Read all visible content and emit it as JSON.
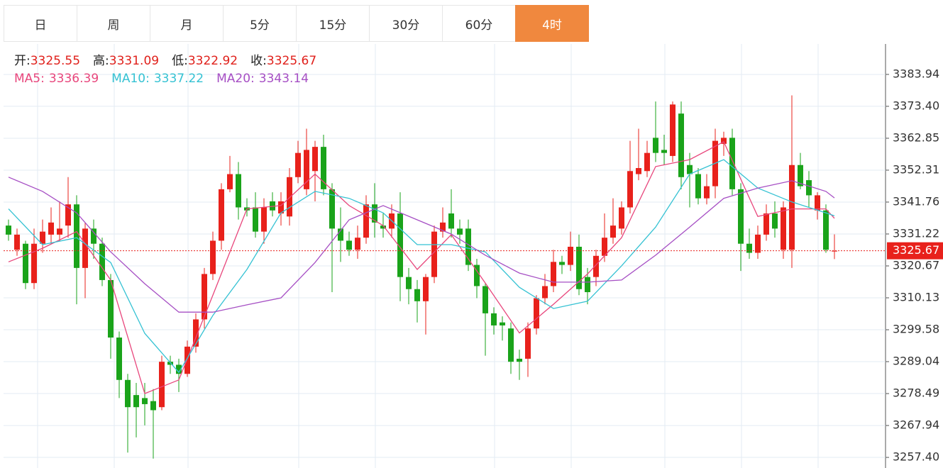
{
  "tabs": [
    "日",
    "周",
    "月",
    "5分",
    "15分",
    "30分",
    "60分",
    "4时"
  ],
  "active_tab": 7,
  "chart_data": {
    "type": "candlestick",
    "ohlc_labels": [
      "开:",
      "高:",
      "低:",
      "收:"
    ],
    "up_color": "#e8211b",
    "down_color": "#1aa31a",
    "ylim": [
      3253.9,
      3394.0
    ],
    "yticks": [
      3383.94,
      {
        "value": 3373.4,
        "label": "3373.40"
      },
      3362.85,
      3352.31,
      3341.76,
      3331.22,
      3320.67,
      3310.13,
      3299.58,
      3289.04,
      3278.49,
      3267.94,
      {
        "value": 3257.4,
        "label": "3257.40"
      }
    ],
    "grid": true,
    "ohlc": [
      [
        3334,
        3336,
        3329,
        3331
      ],
      [
        3326,
        3333,
        3324,
        3331
      ],
      [
        3328,
        3329,
        3313,
        3315
      ],
      [
        3315,
        3333,
        3313,
        3328
      ],
      [
        3328,
        3336,
        3325,
        3332
      ],
      [
        3331,
        3340,
        3328,
        3335
      ],
      [
        3331,
        3342,
        3329,
        3333
      ],
      [
        3334,
        3350,
        3330,
        3341
      ],
      [
        3341,
        3344,
        3308,
        3320
      ],
      [
        3320,
        3335,
        3310,
        3333
      ],
      [
        3333,
        3336,
        3323,
        3328
      ],
      [
        3328,
        3330,
        3314,
        3316
      ],
      [
        3316,
        3318,
        3290,
        3297
      ],
      [
        3297,
        3299,
        3277,
        3283
      ],
      [
        3283,
        3285,
        3259,
        3274
      ],
      [
        3278,
        3282,
        3264,
        3274
      ],
      [
        3277,
        3282,
        3268,
        3275
      ],
      [
        3276,
        3280,
        3257,
        3273
      ],
      [
        3274,
        3291,
        3273,
        3289
      ],
      [
        3289,
        3291,
        3285,
        3288
      ],
      [
        3288,
        3290,
        3279,
        3285
      ],
      [
        3285,
        3296,
        3284,
        3294
      ],
      [
        3294,
        3305,
        3292,
        3303
      ],
      [
        3303,
        3320,
        3300,
        3318
      ],
      [
        3318,
        3332,
        3316,
        3329
      ],
      [
        3329,
        3348,
        3326,
        3346
      ],
      [
        3346,
        3357,
        3345,
        3351
      ],
      [
        3351,
        3355,
        3336,
        3340
      ],
      [
        3340,
        3343,
        3337,
        3339
      ],
      [
        3340,
        3345,
        3330,
        3332
      ],
      [
        3332,
        3343,
        3328,
        3340
      ],
      [
        3342,
        3345,
        3337,
        3339
      ],
      [
        3338,
        3345,
        3334,
        3342
      ],
      [
        3337,
        3353,
        3334,
        3350
      ],
      [
        3350,
        3362,
        3348,
        3358
      ],
      [
        3346,
        3366,
        3344,
        3359
      ],
      [
        3352,
        3362,
        3342,
        3360
      ],
      [
        3360,
        3364,
        3344,
        3346
      ],
      [
        3346,
        3348,
        3312,
        3333
      ],
      [
        3333,
        3340,
        3322,
        3329
      ],
      [
        3329,
        3332,
        3324,
        3326
      ],
      [
        3326,
        3334,
        3323,
        3330
      ],
      [
        3330,
        3344,
        3328,
        3341
      ],
      [
        3341,
        3348,
        3330,
        3335
      ],
      [
        3334,
        3338,
        3330,
        3333
      ],
      [
        3333,
        3341,
        3330,
        3338
      ],
      [
        3338,
        3345,
        3309,
        3317
      ],
      [
        3317,
        3320,
        3308,
        3313
      ],
      [
        3313,
        3316,
        3302,
        3309
      ],
      [
        3309,
        3318,
        3298,
        3317
      ],
      [
        3317,
        3334,
        3315,
        3332
      ],
      [
        3332,
        3340,
        3330,
        3335
      ],
      [
        3338,
        3346,
        3330,
        3333
      ],
      [
        3333,
        3336,
        3328,
        3331
      ],
      [
        3333,
        3336,
        3319,
        3321
      ],
      [
        3321,
        3323,
        3310,
        3314
      ],
      [
        3314,
        3315,
        3291,
        3305
      ],
      [
        3305,
        3307,
        3298,
        3301
      ],
      [
        3302,
        3304,
        3296,
        3301
      ],
      [
        3300,
        3302,
        3285,
        3289
      ],
      [
        3290,
        3293,
        3283,
        3289
      ],
      [
        3290,
        3302,
        3284,
        3300
      ],
      [
        3300,
        3311,
        3298,
        3310
      ],
      [
        3310,
        3318,
        3308,
        3314
      ],
      [
        3314,
        3326,
        3312,
        3322
      ],
      [
        3322,
        3324,
        3318,
        3321
      ],
      [
        3321,
        3332,
        3319,
        3327
      ],
      [
        3327,
        3331,
        3311,
        3313
      ],
      [
        3317,
        3320,
        3308,
        3312
      ],
      [
        3317,
        3326,
        3314,
        3324
      ],
      [
        3324,
        3338,
        3322,
        3330
      ],
      [
        3330,
        3343,
        3328,
        3334
      ],
      [
        3333,
        3342,
        3331,
        3340
      ],
      [
        3340,
        3362,
        3338,
        3352
      ],
      [
        3351,
        3366,
        3349,
        3353
      ],
      [
        3352,
        3362,
        3350,
        3358
      ],
      [
        3363,
        3375,
        3355,
        3358
      ],
      [
        3359,
        3364,
        3354,
        3358
      ],
      [
        3357,
        3375,
        3355,
        3374
      ],
      [
        3371,
        3375,
        3346,
        3350
      ],
      [
        3354,
        3358,
        3340,
        3351
      ],
      [
        3351,
        3353,
        3341,
        3343
      ],
      [
        3343,
        3351,
        3341,
        3347
      ],
      [
        3347,
        3366,
        3343,
        3362
      ],
      [
        3361,
        3365,
        3357,
        3363
      ],
      [
        3363,
        3366,
        3344,
        3346
      ],
      [
        3346,
        3348,
        3319,
        3328
      ],
      [
        3328,
        3333,
        3323,
        3325
      ],
      [
        3325,
        3334,
        3323,
        3331
      ],
      [
        3331,
        3341,
        3329,
        3338
      ],
      [
        3338,
        3342,
        3330,
        3333
      ],
      [
        3326,
        3342,
        3323,
        3340
      ],
      [
        3326,
        3377,
        3320,
        3354
      ],
      [
        3354,
        3358,
        3346,
        3347
      ],
      [
        3349,
        3352,
        3340,
        3344
      ],
      [
        3339,
        3345,
        3336,
        3344
      ],
      [
        3339,
        3341,
        3325,
        3326
      ],
      [
        3325.55,
        3331.09,
        3322.92,
        3325.67
      ]
    ],
    "series": [
      {
        "name": "MA5:",
        "color": "#e8467c",
        "x": [
          0,
          4,
          8,
          12,
          16,
          20,
          24,
          28,
          32,
          36,
          40,
          44,
          48,
          52,
          56,
          60,
          64,
          68,
          72,
          76,
          80,
          84,
          88,
          92,
          96,
          97
        ],
        "values": [
          3322,
          3326.5,
          3332,
          3316,
          3278.5,
          3283,
          3311,
          3339.5,
          3340.6,
          3351,
          3340.6,
          3334,
          3319.5,
          3331,
          3315,
          3298.5,
          3308,
          3318,
          3330,
          3353.5,
          3355.8,
          3361.7,
          3337,
          3339.5,
          3339.5,
          3336.39
        ]
      },
      {
        "name": "MA10:",
        "color": "#35c2d3",
        "x": [
          0,
          4,
          8,
          12,
          16,
          20,
          24,
          28,
          32,
          36,
          40,
          44,
          48,
          52,
          56,
          60,
          64,
          68,
          72,
          76,
          80,
          84,
          88,
          92,
          96,
          97
        ],
        "values": [
          3339.5,
          3327.7,
          3330,
          3321.8,
          3298.4,
          3285.5,
          3304.3,
          3319.5,
          3338.2,
          3345.3,
          3343,
          3338.2,
          3327.7,
          3327.7,
          3325.3,
          3313.6,
          3306.6,
          3309,
          3320.7,
          3333.5,
          3351,
          3355.8,
          3346.4,
          3341.8,
          3338.2,
          3337.22
        ]
      },
      {
        "name": "MA20:",
        "color": "#a64fc4",
        "x": [
          0,
          4,
          8,
          12,
          16,
          20,
          24,
          28,
          32,
          36,
          40,
          44,
          48,
          52,
          56,
          60,
          64,
          68,
          72,
          76,
          80,
          84,
          88,
          92,
          96,
          97
        ],
        "values": [
          3350,
          3345.3,
          3338.2,
          3325.3,
          3314.8,
          3305.4,
          3305.4,
          3307.8,
          3310.1,
          3321.8,
          3335.9,
          3340.6,
          3335.9,
          3331.2,
          3324.2,
          3318.3,
          3315.3,
          3315.3,
          3316,
          3324.2,
          3333.5,
          3343,
          3346.4,
          3348.8,
          3345.3,
          3343.14
        ]
      }
    ]
  }
}
